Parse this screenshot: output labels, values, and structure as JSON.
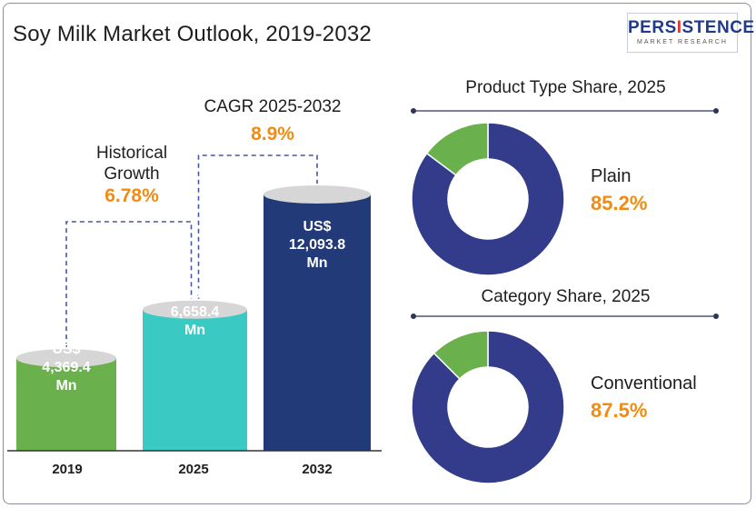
{
  "title": "Soy Milk Market Outlook, 2019-2032",
  "logo": {
    "main_a": "PERS",
    "main_i": "I",
    "main_b": "STENCE",
    "sub": "MARKET RESEARCH"
  },
  "annotations": {
    "historical_label_1": "Historical",
    "historical_label_2": "Growth",
    "historical_value": "6.78%",
    "cagr_label": "CAGR 2025-2032",
    "cagr_value": "8.9%"
  },
  "chart_data": [
    {
      "type": "bar",
      "title": "Soy Milk Market Outlook, 2019-2032",
      "categories": [
        "2019",
        "2025",
        "2032"
      ],
      "values": [
        4369.4,
        6658.4,
        12093.8
      ],
      "unit": "US$ Mn",
      "value_labels": [
        [
          "US$",
          "4,369.4",
          "Mn"
        ],
        [
          "US$",
          "6,658.4",
          "Mn"
        ],
        [
          "US$",
          "12,093.8",
          "Mn"
        ]
      ],
      "colors": [
        "#6ab04c",
        "#3ac9c3",
        "#223a78"
      ],
      "cap_color": "#d6d6d6"
    },
    {
      "type": "pie",
      "title": "Product Type Share, 2025",
      "slices": [
        {
          "label": "Plain",
          "value": 85.2,
          "display": "85.2%",
          "color": "#323c8a"
        },
        {
          "label": "",
          "value": 14.8,
          "color": "#6ab04c"
        }
      ]
    },
    {
      "type": "pie",
      "title": "Category Share, 2025",
      "slices": [
        {
          "label": "Conventional",
          "value": 87.5,
          "display": "87.5%",
          "color": "#323c8a"
        },
        {
          "label": "",
          "value": 12.5,
          "color": "#6ab04c"
        }
      ]
    }
  ]
}
